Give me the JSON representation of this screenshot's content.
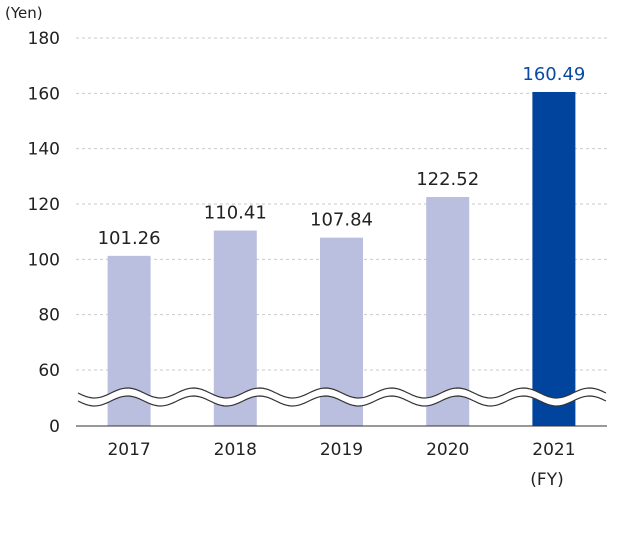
{
  "chart_data": {
    "type": "bar",
    "y_unit_label": "(Yen)",
    "x_unit_label": "(FY)",
    "categories": [
      "2017",
      "2018",
      "2019",
      "2020",
      "2021"
    ],
    "values": [
      101.26,
      110.41,
      107.84,
      122.52,
      160.49
    ],
    "value_labels": [
      "101.26",
      "110.41",
      "107.84",
      "122.52",
      "160.49"
    ],
    "highlight_index": 4,
    "colors": {
      "normal": "#babfe0",
      "highlight": "#00449e",
      "highlight_label": "#0b4aa2"
    },
    "yticks": [
      {
        "label": "0",
        "value": 0
      },
      {
        "label": "60",
        "value": 60
      },
      {
        "label": "80",
        "value": 80
      },
      {
        "label": "100",
        "value": 100
      },
      {
        "label": "120",
        "value": 120
      },
      {
        "label": "140",
        "value": 140
      },
      {
        "label": "160",
        "value": 160
      },
      {
        "label": "180",
        "value": 180
      }
    ],
    "axis_break": "between 0 and 60",
    "grid": true
  }
}
